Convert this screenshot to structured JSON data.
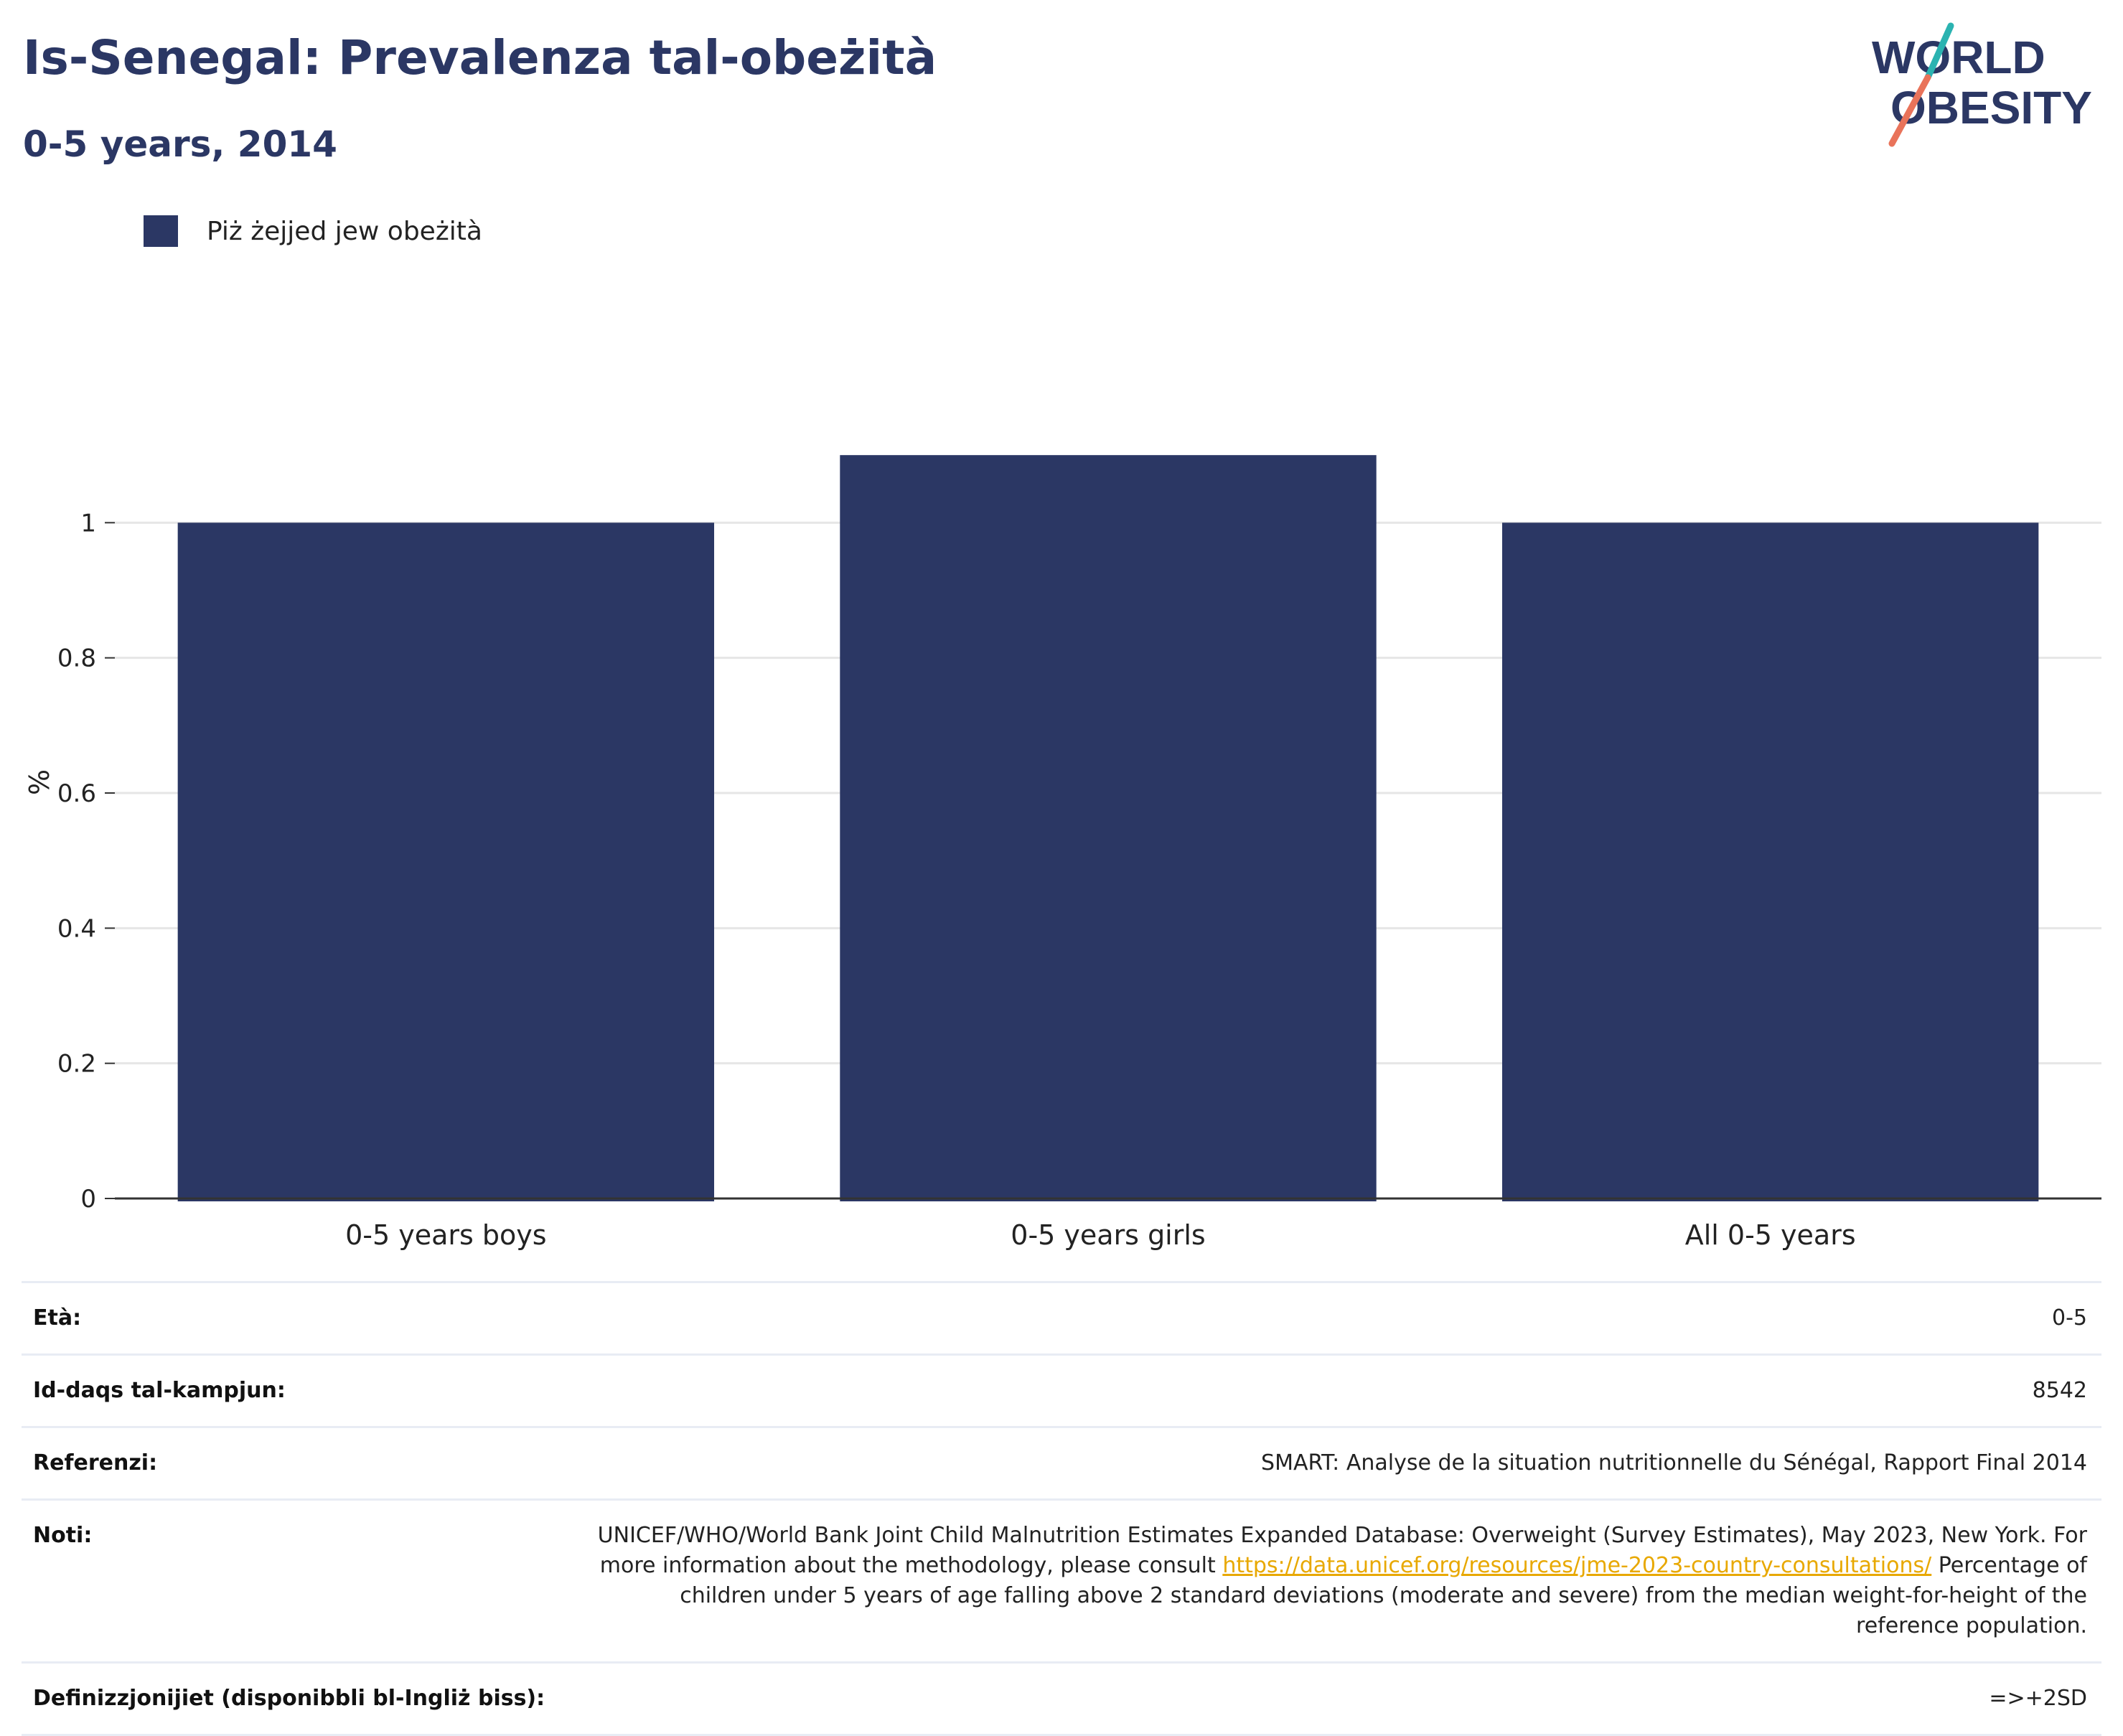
{
  "header": {
    "title": "Is-Senegal: Prevalenza tal-obeżità",
    "subtitle": "0-5 years, 2014"
  },
  "logo": {
    "line1": "WORLD",
    "line2": "OBESITY"
  },
  "legend": {
    "label": "Piż żejjed jew obeżità"
  },
  "colors": {
    "bar": "#2b3764",
    "accent_teal": "#2bb3b1",
    "accent_coral": "#e9735a"
  },
  "chart_data": {
    "type": "bar",
    "categories": [
      "0-5 years boys",
      "0-5 years girls",
      "All 0-5 years"
    ],
    "series": [
      {
        "name": "Piż żejjed jew obeżità",
        "values": [
          1.0,
          1.1,
          1.0
        ]
      }
    ],
    "ylabel": "%",
    "ylim": [
      0,
      1.2
    ],
    "yticks": [
      0,
      0.2,
      0.4,
      0.6,
      0.8,
      1
    ],
    "ytick_labels": [
      "0",
      "0.2",
      "0.4",
      "0.6",
      "0.8",
      "1"
    ],
    "grid": true,
    "legend_position": "top-left"
  },
  "info": {
    "age": {
      "label": "Età:",
      "value": "0-5"
    },
    "sample": {
      "label": "Id-daqs tal-kampjun:",
      "value": "8542"
    },
    "references": {
      "label": "Referenzi:",
      "value": "SMART: Analyse de la situation nutritionnelle du Sénégal, Rapport Final 2014"
    },
    "notes": {
      "label": "Noti:",
      "text_before": "UNICEF/WHO/World Bank Joint Child Malnutrition Estimates Expanded Database: Overweight (Survey Estimates), May 2023, New York. For more information about the methodology, please consult ",
      "link": "https://data.unicef.org/resources/jme-2023-country-consultations/",
      "text_after": " Percentage of children under 5 years of age falling above 2 standard deviations (moderate and severe) from the median weight-for-height of the reference population."
    },
    "definitions": {
      "label": "Definizzjonijiet (disponibbli bl-Ingliż biss):",
      "value": "=>+2SD"
    }
  }
}
